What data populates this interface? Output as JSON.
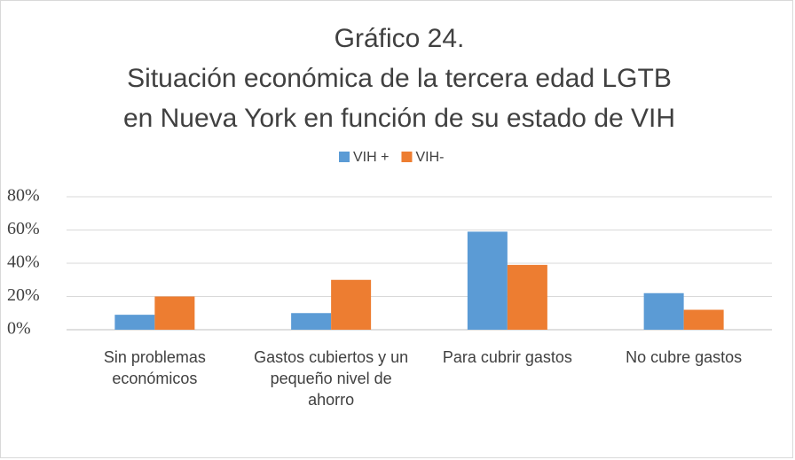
{
  "chart_data": {
    "type": "bar",
    "title": [
      "Gráfico 24.",
      "Situación económica de la tercera edad LGTB",
      "en Nueva York en función de su estado de VIH"
    ],
    "categories": [
      "Sin problemas económicos",
      "Gastos cubiertos y un pequeño nivel de ahorro",
      "Para cubrir gastos",
      "No cubre gastos"
    ],
    "series": [
      {
        "name": "VIH +",
        "color": "#5b9bd5",
        "values": [
          9,
          10,
          59,
          22
        ]
      },
      {
        "name": "VIH-",
        "color": "#ed7d31",
        "values": [
          20,
          30,
          39,
          12
        ]
      }
    ],
    "ylim": [
      0,
      80
    ],
    "yticks": [
      {
        "value": 0,
        "label": "0%"
      },
      {
        "value": 20,
        "label": "20%"
      },
      {
        "value": 40,
        "label": "40%"
      },
      {
        "value": 60,
        "label": "60%"
      },
      {
        "value": 80,
        "label": "80%"
      }
    ],
    "grid": true,
    "legend": "top"
  }
}
